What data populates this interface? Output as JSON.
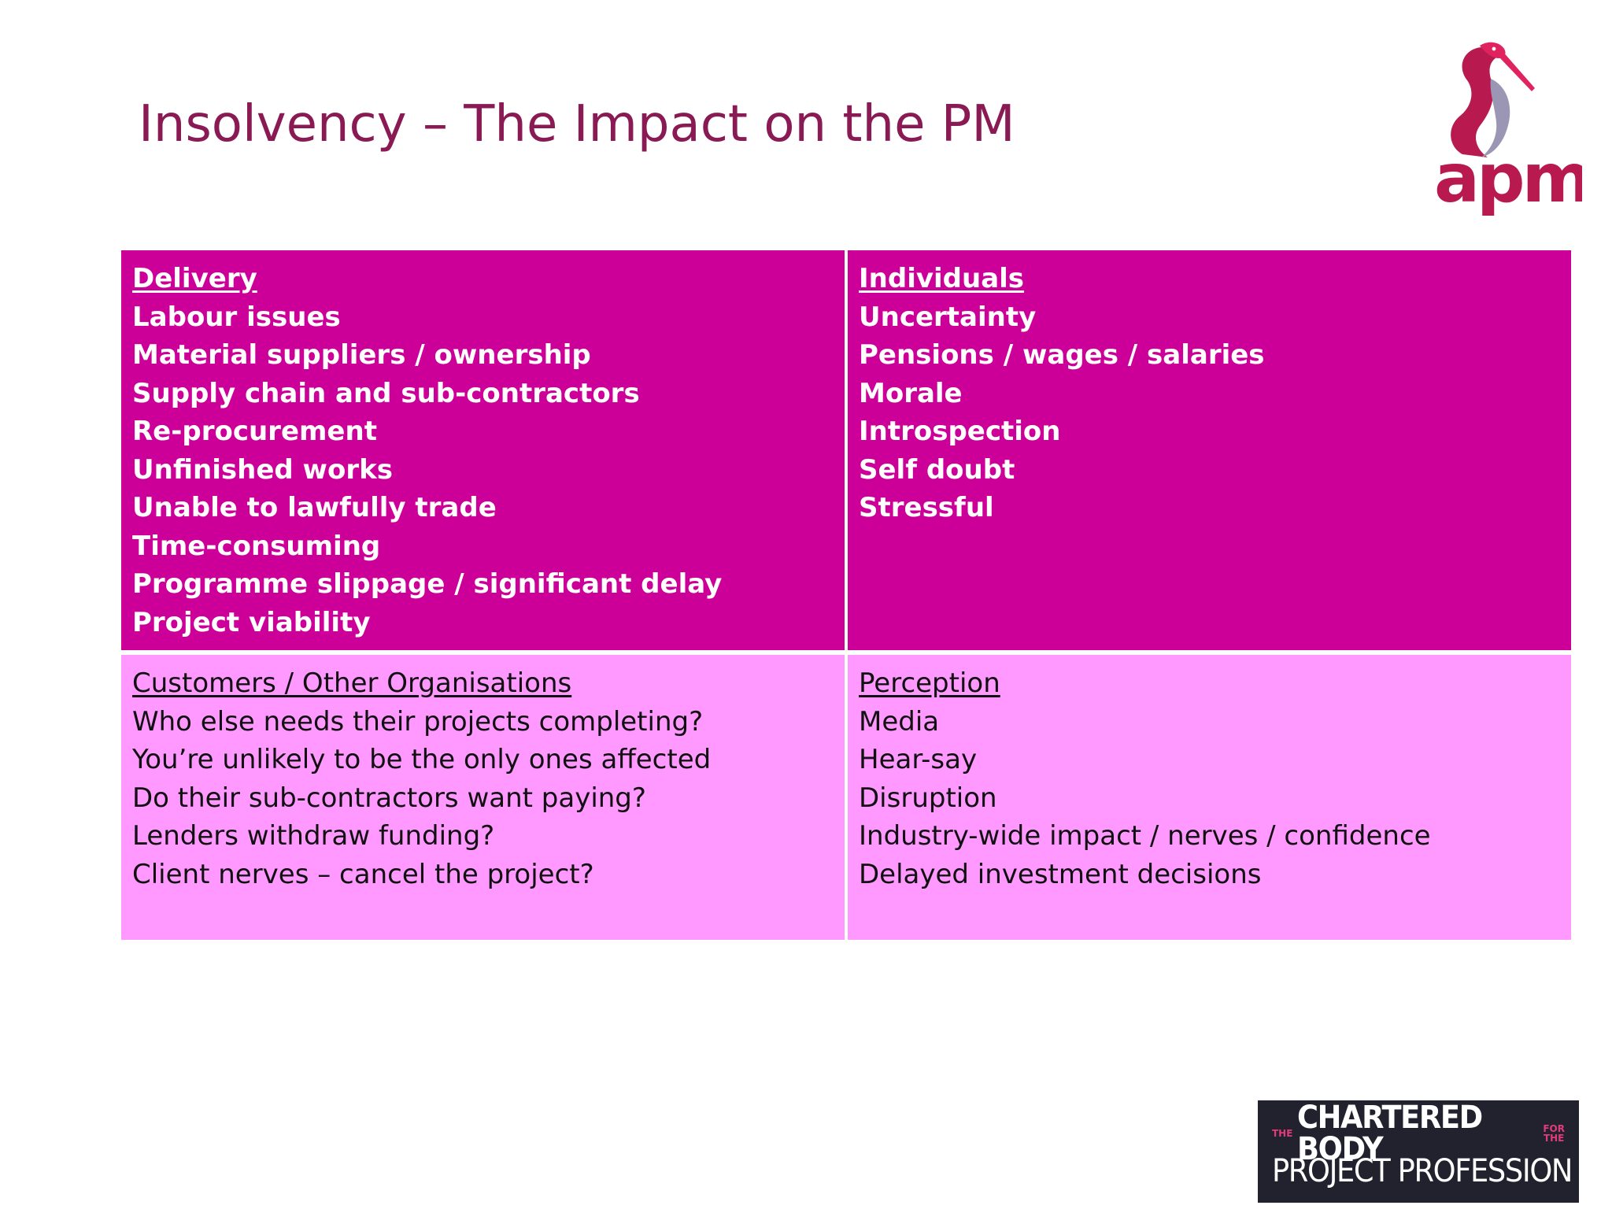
{
  "title": "Insolvency – The Impact on the PM",
  "logo": {
    "text": "apm",
    "colors": {
      "brand": "#b8194f",
      "accent": "#e0235e",
      "grey": "#9a96b4"
    }
  },
  "quadrants": {
    "delivery": {
      "heading": "Delivery",
      "items": [
        "Labour issues",
        "Material suppliers / ownership",
        "Supply chain and sub-contractors",
        "Re-procurement",
        "Unfinished works",
        "Unable to lawfully trade",
        "Time-consuming",
        "Programme slippage / significant delay",
        "Project viability"
      ]
    },
    "individuals": {
      "heading": "Individuals",
      "items": [
        "Uncertainty",
        "Pensions / wages / salaries",
        "Morale",
        "Introspection",
        "Self doubt",
        "Stressful"
      ]
    },
    "customers": {
      "heading": "Customers / Other Organisations",
      "items": [
        "Who else needs their projects completing?",
        "You’re unlikely to be the only ones affected",
        "Do their sub-contractors want paying?",
        "Lenders withdraw funding?",
        "Client nerves – cancel the project?"
      ]
    },
    "perception": {
      "heading": "Perception",
      "items": [
        "Media",
        "Hear-say",
        "Disruption",
        "Industry-wide impact / nerves / confidence",
        "Delayed investment decisions"
      ]
    }
  },
  "badge": {
    "prefix_top": "THE",
    "line1": "CHARTERED BODY",
    "suffix_top": "FOR",
    "suffix_bottom": "THE",
    "line2": "PROJECT PROFESSION"
  },
  "colors": {
    "title": "#8a1a54",
    "dark_cell": "#cc0099",
    "light_cell": "#ff99ff",
    "badge_bg": "#22222e"
  }
}
